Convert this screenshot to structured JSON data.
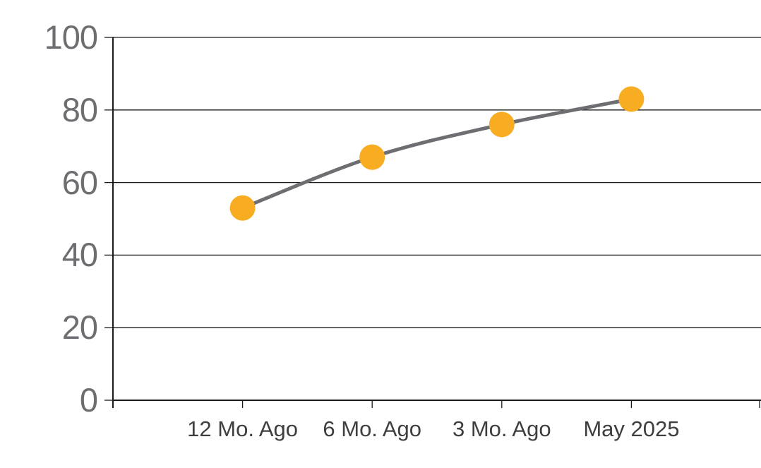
{
  "chart_data": {
    "type": "line",
    "title": "",
    "categories": [
      "12 Mo. Ago",
      "6 Mo. Ago",
      "3 Mo. Ago",
      "May 2025"
    ],
    "values": [
      53,
      67,
      76,
      83
    ],
    "ylim": [
      0,
      100
    ],
    "yticks": [
      0,
      20,
      40,
      60,
      80,
      100
    ],
    "xlabel": "",
    "ylabel": "",
    "grid": "horizontal",
    "legend": "none",
    "smoothed": true,
    "marker": "circle",
    "colors": {
      "marker": "#F8AC21",
      "line": "#6D6E71",
      "grid": "#1A1A1A",
      "axis": "#1A1A1A",
      "ytick_label": "#6D6E71",
      "xtick_label": "#3E3E40",
      "background": "#FFFFFF"
    }
  }
}
